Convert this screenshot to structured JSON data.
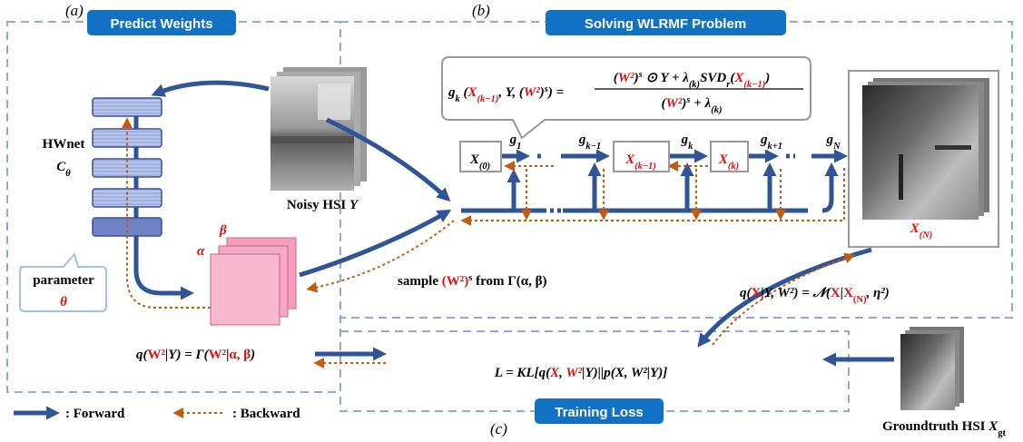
{
  "panels": {
    "a": {
      "tag": "(a)",
      "title": "Predict Weights"
    },
    "b": {
      "tag": "(b)",
      "title": "Solving WLRMF Problem"
    },
    "c": {
      "tag": "(c)",
      "title": "Training Loss"
    }
  },
  "hwnet": {
    "name": "HWnet",
    "symbol": [
      "C",
      "θ"
    ],
    "parameter": "parameter",
    "theta": "θ"
  },
  "cube": {
    "alpha": "α",
    "beta": "β"
  },
  "noisy_label": [
    "Noisy HSI ",
    "Y"
  ],
  "sample": [
    "sample ",
    "(W²)",
    "s",
    " from Γ(α, β)"
  ],
  "q_w": [
    "q(",
    "W²",
    "|Y) = Γ(",
    "W²",
    "|",
    "α, β",
    ")"
  ],
  "gk_formula": {
    "lhs": [
      "g",
      "k",
      " (",
      "X",
      "(k−1)",
      ", Y, (",
      "W²",
      ")",
      "s",
      ") ="
    ],
    "num": [
      "(",
      "W²",
      ")",
      "s",
      " ⊙ Y + λ",
      "(k)",
      "SVD",
      "r",
      "(",
      "X",
      "(k−1)",
      ")"
    ],
    "den": [
      "(",
      "W²",
      ")",
      "s",
      " + λ",
      "(k)"
    ]
  },
  "chain": {
    "x0": [
      "X",
      "(0)"
    ],
    "xk1": [
      "X",
      "(k−1)"
    ],
    "xk": [
      "X",
      "(k)"
    ],
    "xN": [
      "X",
      "(N)"
    ],
    "g1": [
      "g",
      "1"
    ],
    "gk1": [
      "g",
      "k−1"
    ],
    "gk": [
      "g",
      "k"
    ],
    "gk_1": [
      "g",
      "k+1"
    ],
    "gN": [
      "g",
      "N"
    ]
  },
  "q_x": [
    "q(",
    "X",
    "|Y, W²) = 𝒩(",
    "X",
    "|",
    "X",
    "(N)",
    ", η²)"
  ],
  "loss": [
    "L = KL[q(",
    "X",
    ", ",
    "W²",
    "|Y)||p(X, W²|Y)]"
  ],
  "groundtruth_label": [
    "Groundtruth HSI ",
    "X",
    "gt"
  ],
  "legend": {
    "forward": ": Forward",
    "backward": ": Backward"
  }
}
